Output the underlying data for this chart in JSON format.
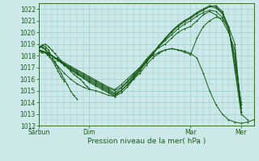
{
  "xlabel": "Pression niveau de la mer( hPa )",
  "ylim": [
    1012,
    1022.5
  ],
  "yticks": [
    1012,
    1013,
    1014,
    1015,
    1016,
    1017,
    1018,
    1019,
    1020,
    1021,
    1022
  ],
  "bg_color": "#cce8e8",
  "grid_color": "#99cccc",
  "line_color": "#1a5c1a",
  "line_width": 0.7,
  "xtick_labels": [
    "Sárbun",
    "Dim",
    "Mar",
    "Mer"
  ],
  "xtick_positions": [
    0,
    48,
    144,
    192
  ],
  "total_hours": 204,
  "lines": [
    {
      "x": [
        0,
        1,
        2,
        3,
        4,
        5,
        6,
        7,
        8,
        9,
        10,
        12,
        15,
        18,
        24,
        30,
        36,
        42,
        48,
        54,
        60,
        66,
        72,
        78,
        84,
        90,
        96,
        102,
        108,
        114,
        120,
        126,
        132,
        138,
        144,
        150,
        156,
        162,
        168,
        174,
        180,
        186,
        192,
        198,
        204
      ],
      "y": [
        1018.5,
        1018.4,
        1018.3,
        1018.3,
        1018.3,
        1018.3,
        1018.3,
        1018.2,
        1018.1,
        1018.0,
        1017.9,
        1017.7,
        1017.4,
        1017.1,
        1016.5,
        1016.0,
        1015.6,
        1015.3,
        1015.1,
        1015.0,
        1014.8,
        1014.6,
        1014.5,
        1015.0,
        1015.5,
        1016.0,
        1016.5,
        1017.2,
        1017.8,
        1018.2,
        1018.5,
        1018.6,
        1018.5,
        1018.4,
        1018.2,
        1017.8,
        1016.5,
        1015.0,
        1013.8,
        1013.0,
        1012.5,
        1012.3,
        1012.2,
        1012.3,
        1012.5
      ]
    },
    {
      "x": [
        0,
        6,
        12,
        18,
        24,
        30,
        36,
        42,
        48,
        54,
        60,
        66,
        72,
        78,
        84,
        90,
        96,
        102,
        108,
        114,
        120,
        126,
        132,
        138,
        144,
        150,
        156,
        162,
        168,
        174,
        180,
        186,
        192
      ],
      "y": [
        1018.5,
        1018.3,
        1018.0,
        1017.7,
        1017.4,
        1017.1,
        1016.8,
        1016.5,
        1016.2,
        1015.9,
        1015.6,
        1015.3,
        1015.1,
        1015.5,
        1016.0,
        1016.5,
        1017.0,
        1017.5,
        1018.0,
        1018.3,
        1018.5,
        1018.6,
        1018.5,
        1018.3,
        1018.1,
        1019.5,
        1020.5,
        1021.0,
        1021.3,
        1021.2,
        1020.5,
        1019.0,
        1013.2
      ]
    },
    {
      "x": [
        0,
        6,
        12,
        18,
        24,
        30,
        36,
        42,
        48,
        54,
        60,
        66,
        72,
        78,
        84,
        90,
        96,
        102,
        108,
        114,
        120,
        126,
        132,
        138,
        144,
        150,
        156,
        162,
        168,
        174,
        180,
        186,
        192
      ],
      "y": [
        1018.5,
        1018.3,
        1018.0,
        1017.7,
        1017.3,
        1017.0,
        1016.7,
        1016.4,
        1016.1,
        1015.8,
        1015.5,
        1015.2,
        1015.0,
        1015.3,
        1015.8,
        1016.4,
        1017.0,
        1017.7,
        1018.3,
        1018.7,
        1019.0,
        1019.5,
        1020.0,
        1020.3,
        1020.5,
        1021.0,
        1021.5,
        1021.8,
        1021.5,
        1021.0,
        1020.0,
        1018.5,
        1013.5
      ]
    },
    {
      "x": [
        0,
        6,
        12,
        18,
        24,
        30,
        36,
        42,
        48,
        54,
        60,
        66,
        72,
        78,
        84,
        90,
        96,
        102,
        108,
        114,
        120,
        126,
        132,
        138,
        144,
        150,
        156,
        162,
        168,
        174,
        180,
        186,
        192
      ],
      "y": [
        1018.5,
        1018.3,
        1018.0,
        1017.7,
        1017.3,
        1017.0,
        1016.6,
        1016.3,
        1016.0,
        1015.7,
        1015.4,
        1015.1,
        1014.8,
        1015.2,
        1015.7,
        1016.3,
        1016.9,
        1017.6,
        1018.2,
        1018.8,
        1019.3,
        1019.8,
        1020.3,
        1020.7,
        1021.0,
        1021.4,
        1021.7,
        1021.9,
        1021.8,
        1021.3,
        1020.2,
        1018.0,
        1013.8
      ]
    },
    {
      "x": [
        0,
        6,
        12,
        18,
        24,
        30,
        36,
        42,
        48,
        54,
        60,
        66,
        72,
        78,
        84,
        90,
        96,
        102,
        108,
        114,
        120,
        126,
        132,
        138,
        144,
        150,
        156,
        162,
        168,
        174,
        180,
        186,
        192
      ],
      "y": [
        1018.5,
        1018.3,
        1018.0,
        1017.7,
        1017.2,
        1016.9,
        1016.5,
        1016.2,
        1015.9,
        1015.6,
        1015.3,
        1015.0,
        1014.7,
        1015.0,
        1015.5,
        1016.2,
        1016.8,
        1017.5,
        1018.1,
        1018.8,
        1019.4,
        1020.0,
        1020.5,
        1020.9,
        1021.2,
        1021.6,
        1021.9,
        1022.2,
        1022.1,
        1021.6,
        1020.4,
        1017.5,
        1014.0
      ]
    },
    {
      "x": [
        0,
        6,
        12,
        18,
        24,
        30,
        36,
        42,
        48,
        54,
        60,
        66,
        72,
        78,
        84,
        90,
        96,
        102,
        108,
        114,
        120,
        126,
        132,
        138,
        144,
        150,
        156,
        162,
        168,
        174,
        180,
        186,
        192
      ],
      "y": [
        1018.5,
        1018.3,
        1018.0,
        1017.6,
        1017.2,
        1016.8,
        1016.5,
        1016.1,
        1015.8,
        1015.5,
        1015.2,
        1014.9,
        1014.6,
        1015.0,
        1015.5,
        1016.1,
        1016.8,
        1017.5,
        1018.2,
        1018.9,
        1019.5,
        1020.1,
        1020.6,
        1021.0,
        1021.3,
        1021.7,
        1022.0,
        1022.3,
        1022.2,
        1021.7,
        1020.5,
        1017.2,
        1013.2
      ]
    },
    {
      "x": [
        0,
        6,
        12,
        18,
        24,
        30,
        36,
        42,
        48,
        54,
        60,
        66,
        72,
        78,
        84,
        90,
        96,
        102,
        108,
        114,
        120,
        126,
        132,
        138,
        144,
        150,
        156,
        162,
        168,
        174,
        180,
        186,
        192,
        198
      ],
      "y": [
        1018.5,
        1018.3,
        1018.0,
        1017.6,
        1017.2,
        1016.8,
        1016.4,
        1016.1,
        1015.7,
        1015.4,
        1015.1,
        1014.8,
        1014.5,
        1014.8,
        1015.3,
        1016.0,
        1016.7,
        1017.4,
        1018.1,
        1018.8,
        1019.5,
        1020.1,
        1020.6,
        1021.0,
        1021.3,
        1021.7,
        1022.0,
        1022.2,
        1022.3,
        1021.8,
        1020.5,
        1016.8,
        1013.0,
        1012.5
      ]
    },
    {
      "x": [
        0,
        3,
        6,
        9,
        12,
        15,
        18,
        21,
        24,
        27,
        30,
        33,
        36,
        39,
        42,
        45,
        48
      ],
      "y": [
        1018.7,
        1018.9,
        1019.0,
        1018.8,
        1018.5,
        1018.2,
        1017.9,
        1017.6,
        1017.3,
        1017.0,
        1016.7,
        1016.4,
        1016.2,
        1016.0,
        1015.7,
        1015.4,
        1015.2
      ]
    },
    {
      "x": [
        0,
        3,
        6,
        9,
        12,
        15,
        18,
        21,
        24,
        27,
        30,
        33,
        36
      ],
      "y": [
        1018.7,
        1018.9,
        1018.8,
        1018.5,
        1018.0,
        1017.5,
        1017.0,
        1016.5,
        1016.0,
        1015.5,
        1015.0,
        1014.6,
        1014.3
      ]
    },
    {
      "x": [
        0,
        3,
        6,
        9,
        12,
        15,
        18,
        21,
        24
      ],
      "y": [
        1018.7,
        1018.8,
        1018.6,
        1018.2,
        1017.7,
        1017.2,
        1016.7,
        1016.2,
        1015.8
      ]
    },
    {
      "x": [
        0,
        3,
        6,
        9,
        12
      ],
      "y": [
        1018.7,
        1018.7,
        1018.5,
        1018.3,
        1018.0
      ]
    }
  ]
}
